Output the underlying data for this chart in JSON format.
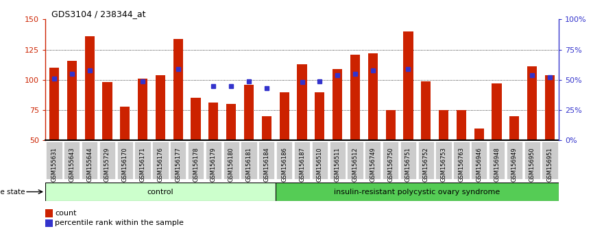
{
  "title": "GDS3104 / 238344_at",
  "samples": [
    "GSM155631",
    "GSM155643",
    "GSM155644",
    "GSM155729",
    "GSM156170",
    "GSM156171",
    "GSM156176",
    "GSM156177",
    "GSM156178",
    "GSM156179",
    "GSM156180",
    "GSM156181",
    "GSM156184",
    "GSM156186",
    "GSM156187",
    "GSM156510",
    "GSM156511",
    "GSM156512",
    "GSM156749",
    "GSM156750",
    "GSM156751",
    "GSM156752",
    "GSM156753",
    "GSM156763",
    "GSM156946",
    "GSM156948",
    "GSM156949",
    "GSM156950",
    "GSM156951"
  ],
  "bar_values": [
    110,
    116,
    136,
    98,
    78,
    101,
    104,
    134,
    85,
    81,
    80,
    96,
    70,
    90,
    113,
    90,
    109,
    121,
    122,
    75,
    140,
    99,
    75,
    75,
    60,
    97,
    70,
    111,
    104
  ],
  "dot_percentiles": [
    51,
    55,
    58,
    null,
    null,
    49,
    null,
    59,
    null,
    45,
    45,
    49,
    43,
    null,
    48,
    49,
    54,
    55,
    58,
    null,
    59,
    null,
    null,
    null,
    null,
    null,
    null,
    54,
    52
  ],
  "control_count": 13,
  "group1_label": "control",
  "group2_label": "insulin-resistant polycystic ovary syndrome",
  "ylim_left": [
    50,
    150
  ],
  "ylim_right": [
    0,
    100
  ],
  "yticks_left": [
    50,
    75,
    100,
    125,
    150
  ],
  "yticks_right": [
    0,
    25,
    50,
    75,
    100
  ],
  "bar_color": "#cc2200",
  "dot_color": "#3333cc",
  "group_bg1": "#ccffcc",
  "group_bg2": "#55cc55",
  "left_axis_color": "#cc2200",
  "right_axis_color": "#3333cc",
  "legend_count_label": "count",
  "legend_pct_label": "percentile rank within the sample",
  "grid_lines": [
    75,
    100,
    125
  ],
  "tick_bg_color": "#cccccc"
}
